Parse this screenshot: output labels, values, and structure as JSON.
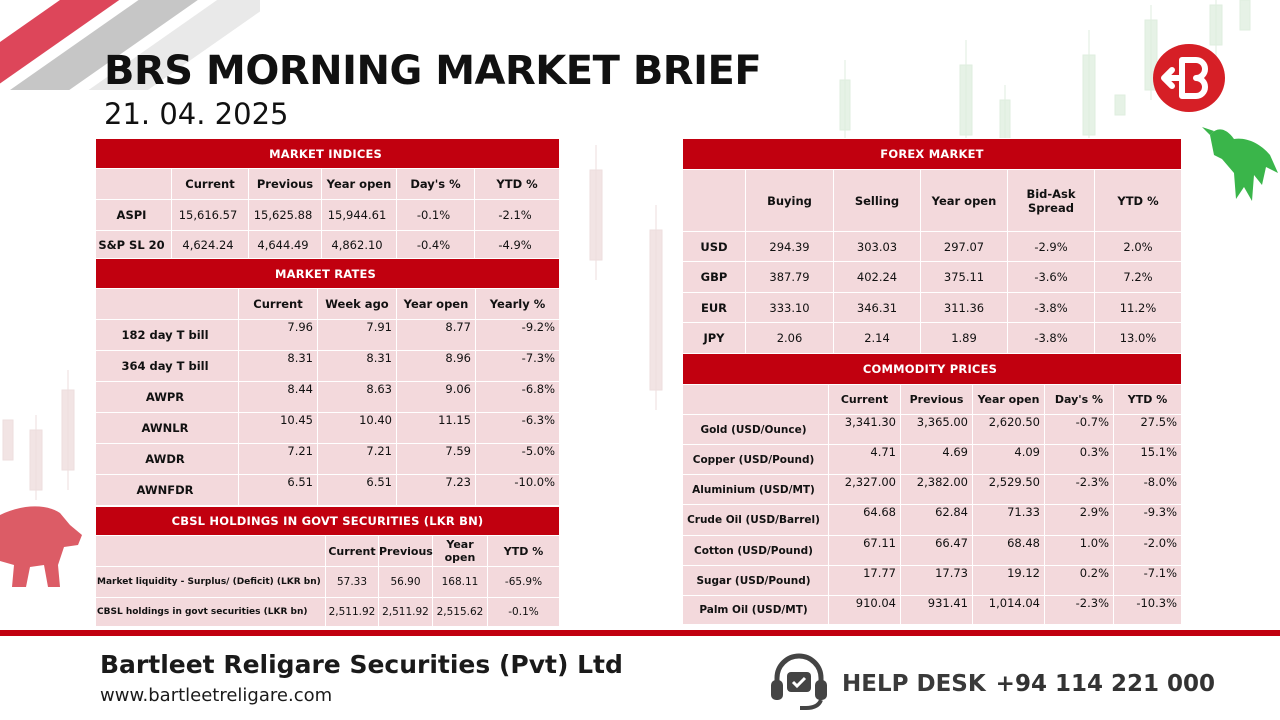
{
  "header": {
    "title": "BRS MORNING MARKET BRIEF",
    "date": "21. 04. 2025"
  },
  "market_indices": {
    "title": "MARKET INDICES",
    "columns": [
      "Current",
      "Previous",
      "Year open",
      "Day's %",
      "YTD %"
    ],
    "rows": [
      {
        "label": "ASPI",
        "values": [
          "15,616.57",
          "15,625.88",
          "15,944.61",
          "-0.1%",
          "-2.1%"
        ]
      },
      {
        "label": "S&P SL 20",
        "values": [
          "4,624.24",
          "4,644.49",
          "4,862.10",
          "-0.4%",
          "-4.9%"
        ]
      }
    ]
  },
  "market_rates": {
    "title": "MARKET RATES",
    "columns": [
      "Current",
      "Week ago",
      "Year open",
      "Yearly %"
    ],
    "rows": [
      {
        "label": "182 day T bill",
        "values": [
          "7.96",
          "7.91",
          "8.77",
          "-9.2%"
        ]
      },
      {
        "label": "364 day T bill",
        "values": [
          "8.31",
          "8.31",
          "8.96",
          "-7.3%"
        ]
      },
      {
        "label": "AWPR",
        "values": [
          "8.44",
          "8.63",
          "9.06",
          "-6.8%"
        ]
      },
      {
        "label": "AWNLR",
        "values": [
          "10.45",
          "10.40",
          "11.15",
          "-6.3%"
        ]
      },
      {
        "label": "AWDR",
        "values": [
          "7.21",
          "7.21",
          "7.59",
          "-5.0%"
        ]
      },
      {
        "label": "AWNFDR",
        "values": [
          "6.51",
          "6.51",
          "7.23",
          "-10.0%"
        ]
      }
    ]
  },
  "cbsl": {
    "title": "CBSL HOLDINGS IN GOVT SECURITIES (LKR BN)",
    "columns": [
      "Current",
      "Previous",
      "Year open",
      "YTD %"
    ],
    "rows": [
      {
        "label": "Market liquidity - Surplus/ (Deficit) (LKR bn)",
        "values": [
          "57.33",
          "56.90",
          "168.11",
          "-65.9%"
        ]
      },
      {
        "label": "CBSL holdings in govt securities (LKR bn)",
        "values": [
          "2,511.92",
          "2,511.92",
          "2,515.62",
          "-0.1%"
        ]
      }
    ]
  },
  "forex": {
    "title": "FOREX MARKET",
    "columns": [
      "Buying",
      "Selling",
      "Year open",
      "Bid-Ask Spread",
      "YTD %"
    ],
    "rows": [
      {
        "label": "USD",
        "values": [
          "294.39",
          "303.03",
          "297.07",
          "-2.9%",
          "2.0%"
        ]
      },
      {
        "label": "GBP",
        "values": [
          "387.79",
          "402.24",
          "375.11",
          "-3.6%",
          "7.2%"
        ]
      },
      {
        "label": "EUR",
        "values": [
          "333.10",
          "346.31",
          "311.36",
          "-3.8%",
          "11.2%"
        ]
      },
      {
        "label": "JPY",
        "values": [
          "2.06",
          "2.14",
          "1.89",
          "-3.8%",
          "13.0%"
        ]
      }
    ]
  },
  "commodity": {
    "title": "COMMODITY PRICES",
    "columns": [
      "Current",
      "Previous",
      "Year open",
      "Day's %",
      "YTD %"
    ],
    "rows": [
      {
        "label": "Gold (USD/Ounce)",
        "values": [
          "3,341.30",
          "3,365.00",
          "2,620.50",
          "-0.7%",
          "27.5%"
        ]
      },
      {
        "label": "Copper (USD/Pound)",
        "values": [
          "4.71",
          "4.69",
          "4.09",
          "0.3%",
          "15.1%"
        ]
      },
      {
        "label": "Aluminium (USD/MT)",
        "values": [
          "2,327.00",
          "2,382.00",
          "2,529.50",
          "-2.3%",
          "-8.0%"
        ]
      },
      {
        "label": "Crude Oil (USD/Barrel)",
        "values": [
          "64.68",
          "62.84",
          "71.33",
          "2.9%",
          "-9.3%"
        ]
      },
      {
        "label": "Cotton (USD/Pound)",
        "values": [
          "67.11",
          "66.47",
          "68.48",
          "1.0%",
          "-2.0%"
        ]
      },
      {
        "label": "Sugar (USD/Pound)",
        "values": [
          "17.77",
          "17.73",
          "19.12",
          "0.2%",
          "-7.1%"
        ]
      },
      {
        "label": "Palm Oil (USD/MT)",
        "values": [
          "910.04",
          "931.41",
          "1,014.04",
          "-2.3%",
          "-10.3%"
        ]
      }
    ]
  },
  "footer": {
    "company": "Bartleet Religare Securities (Pvt) Ltd",
    "website": "www.bartleetreligare.com",
    "helpdesk_label": "HELP DESK",
    "helpdesk_phone": "+94 114 221 000"
  },
  "colors": {
    "accent": "#c1000f",
    "cell_bg": "#f3d9dc"
  },
  "icons": [
    "brs-logo-icon",
    "headset-icon",
    "bull-icon",
    "bear-icon"
  ]
}
